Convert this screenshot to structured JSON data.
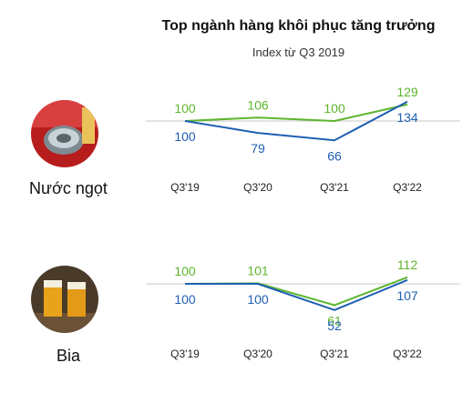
{
  "title": "Top ngành hàng khôi phục tăng trưởng",
  "subtitle": "Index từ Q3 2019",
  "colors": {
    "green": "#5db52f",
    "blue": "#1f5fb4",
    "axis": "#c8c8c8",
    "tick": "#222222"
  },
  "chart_data": [
    {
      "type": "line",
      "category_label": "Nước ngọt",
      "icon": "soda-can-icon",
      "categories": [
        "Q3'19",
        "Q3'20",
        "Q3'21",
        "Q3'22"
      ],
      "series": [
        {
          "values": [
            100,
            106,
            100,
            129
          ],
          "color": "#5db52f"
        },
        {
          "values": [
            100,
            79,
            66,
            134
          ],
          "color": "#1f5fb4"
        }
      ]
    },
    {
      "type": "line",
      "category_label": "Bia",
      "icon": "beer-glass-icon",
      "categories": [
        "Q3'19",
        "Q3'20",
        "Q3'21",
        "Q3'22"
      ],
      "series": [
        {
          "values": [
            100,
            101,
            61,
            112
          ],
          "color": "#5db52f"
        },
        {
          "values": [
            100,
            100,
            52,
            107
          ],
          "color": "#1f5fb4"
        }
      ]
    }
  ]
}
